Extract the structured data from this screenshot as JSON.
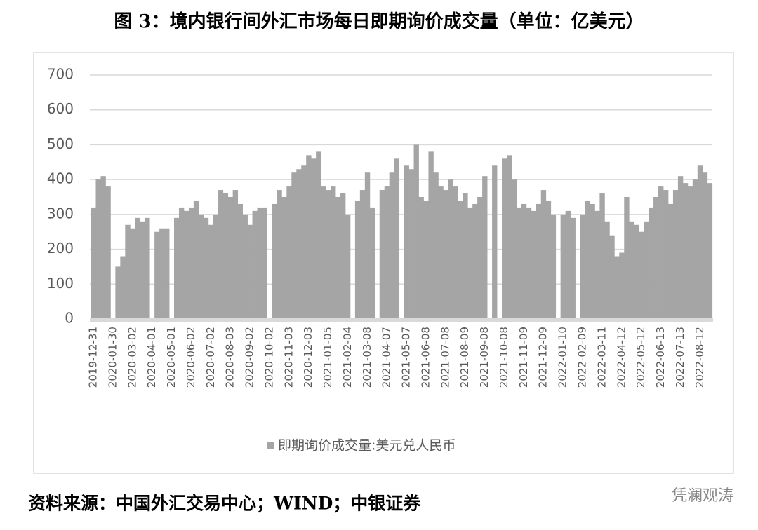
{
  "chart_data": {
    "type": "bar",
    "title": "图 3：境内银行间外汇市场每日即期询价成交量（单位：亿美元）",
    "categories": [
      "2019-12-31",
      null,
      null,
      null,
      "2020-01-30",
      null,
      null,
      null,
      "2020-03-02",
      null,
      null,
      null,
      "2020-04-01",
      null,
      null,
      null,
      "2020-05-01",
      null,
      null,
      null,
      "2020-06-02",
      null,
      null,
      null,
      "2020-07-02",
      null,
      null,
      null,
      "2020-08-03",
      null,
      null,
      null,
      "2020-09-02",
      null,
      null,
      null,
      "2020-10-02",
      null,
      null,
      null,
      "2020-11-03",
      null,
      null,
      null,
      "2020-12-03",
      null,
      null,
      null,
      "2021-01-05",
      null,
      null,
      null,
      "2021-02-04",
      null,
      null,
      null,
      "2021-03-08",
      null,
      null,
      null,
      "2021-04-07",
      null,
      null,
      null,
      "2021-05-07",
      null,
      null,
      null,
      "2021-06-08",
      null,
      null,
      null,
      "2021-07-08",
      null,
      null,
      null,
      "2021-08-09",
      null,
      null,
      null,
      "2021-09-08",
      null,
      null,
      null,
      "2021-10-08",
      null,
      null,
      null,
      "2021-11-09",
      null,
      null,
      null,
      "2021-12-09",
      null,
      null,
      null,
      "2022-01-10",
      null,
      null,
      null,
      "2022-02-09",
      null,
      null,
      null,
      "2022-03-11",
      null,
      null,
      null,
      "2022-04-12",
      null,
      null,
      null,
      "2022-05-12",
      null,
      null,
      null,
      "2022-06-13",
      null,
      null,
      null,
      "2022-07-13",
      null,
      null,
      null,
      "2022-08-12",
      null,
      null
    ],
    "series": [
      {
        "name": "即期询价成交量:美元兑人民币",
        "color": "#a5a5a5",
        "values": [
          320,
          400,
          410,
          380,
          null,
          150,
          180,
          270,
          260,
          290,
          280,
          290,
          null,
          250,
          260,
          260,
          null,
          290,
          320,
          310,
          320,
          340,
          300,
          290,
          270,
          300,
          370,
          360,
          350,
          370,
          330,
          300,
          270,
          310,
          320,
          320,
          null,
          330,
          370,
          350,
          380,
          420,
          430,
          440,
          470,
          460,
          480,
          380,
          370,
          380,
          350,
          360,
          300,
          null,
          340,
          370,
          420,
          320,
          null,
          370,
          380,
          420,
          460,
          null,
          440,
          430,
          500,
          350,
          340,
          480,
          420,
          380,
          370,
          400,
          380,
          340,
          360,
          320,
          330,
          350,
          410,
          null,
          440,
          null,
          460,
          470,
          400,
          320,
          330,
          320,
          310,
          330,
          370,
          340,
          300,
          null,
          300,
          310,
          290,
          null,
          300,
          340,
          330,
          310,
          360,
          280,
          240,
          180,
          190,
          350,
          280,
          270,
          250,
          280,
          320,
          350,
          380,
          370,
          330,
          370,
          410,
          390,
          380,
          400,
          440,
          420,
          390
        ]
      }
    ],
    "ylim": [
      0,
      700
    ],
    "yticks": [
      0,
      100,
      200,
      300,
      400,
      500,
      600,
      700
    ],
    "grid": true
  },
  "source": "资料来源：中国外汇交易中心；WIND；中银证券",
  "watermark": "凭澜观涛"
}
